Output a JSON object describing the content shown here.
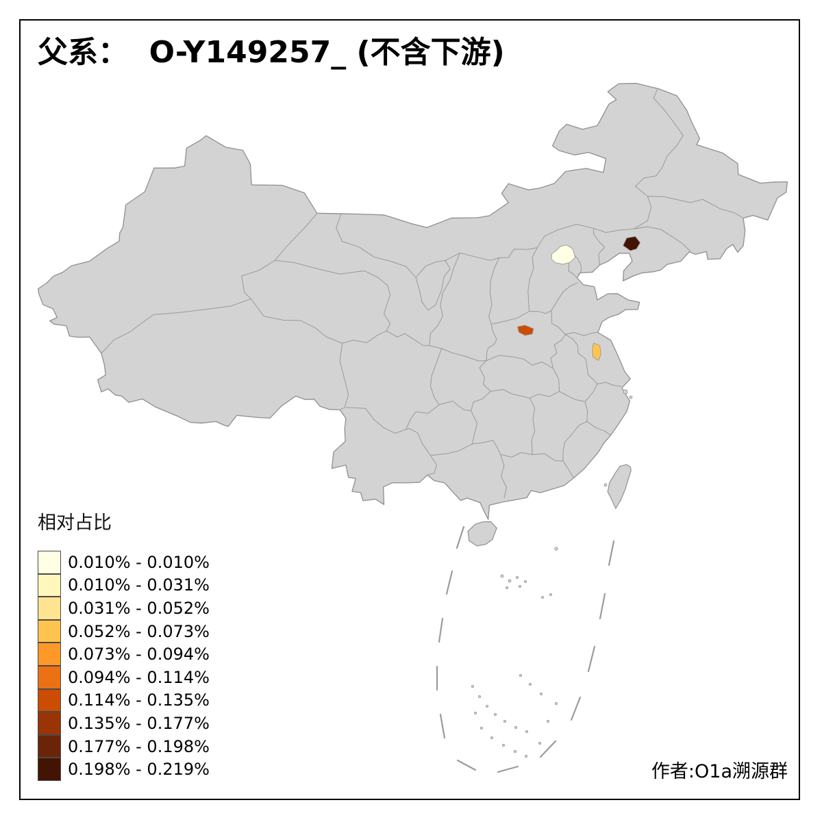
{
  "title": "父系：  O-Y149257_ (不含下游)",
  "attribution": "作者:O1a溯源群",
  "legend": {
    "title": "相对占比",
    "items": [
      {
        "label": "0.010% - 0.010%",
        "color": "#FFFFE5"
      },
      {
        "label": "0.010% - 0.031%",
        "color": "#FFF7BC"
      },
      {
        "label": "0.031% - 0.052%",
        "color": "#FEE391"
      },
      {
        "label": "0.052% - 0.073%",
        "color": "#FEC44F"
      },
      {
        "label": "0.073% - 0.094%",
        "color": "#FE9929"
      },
      {
        "label": "0.094% - 0.114%",
        "color": "#EC7014"
      },
      {
        "label": "0.114% - 0.135%",
        "color": "#CC4C02"
      },
      {
        "label": "0.135% - 0.177%",
        "color": "#993404"
      },
      {
        "label": "0.177% - 0.198%",
        "color": "#6B2407"
      },
      {
        "label": "0.198% - 0.219%",
        "color": "#431403"
      }
    ]
  },
  "map": {
    "land_fill": "#d3d3d3",
    "outer_stroke": "#8f8f8f",
    "border_stroke": "#999999",
    "sea_mark_stroke": "#9b9b9b",
    "frame_color": "#000000",
    "background": "#ffffff",
    "highlighted_regions": [
      {
        "name": "beijing-area",
        "range": "0.010% - 0.010%",
        "color": "#FFFFE5"
      },
      {
        "name": "west-liaoning-area",
        "range": "0.198% - 0.219%",
        "color": "#431403"
      },
      {
        "name": "central-henan-area",
        "range": "0.114% - 0.135%",
        "color": "#CC4C02"
      },
      {
        "name": "central-jiangsu-area",
        "range": "0.052% - 0.073%",
        "color": "#FEC44F"
      }
    ]
  },
  "chart_data": {
    "type": "heatmap",
    "subtype": "choropleth-map",
    "title": "父系：  O-Y149257_ (不含下游)",
    "legend_title": "相对占比",
    "bins": [
      "0.010% - 0.010%",
      "0.010% - 0.031%",
      "0.031% - 0.052%",
      "0.052% - 0.073%",
      "0.073% - 0.094%",
      "0.094% - 0.114%",
      "0.114% - 0.135%",
      "0.135% - 0.177%",
      "0.177% - 0.198%",
      "0.198% - 0.219%"
    ],
    "regions": [
      {
        "location": "beijing-area",
        "bin": "0.010% - 0.010%"
      },
      {
        "location": "west-liaoning-area",
        "bin": "0.198% - 0.219%"
      },
      {
        "location": "central-henan-area",
        "bin": "0.114% - 0.135%"
      },
      {
        "location": "central-jiangsu-area",
        "bin": "0.052% - 0.073%"
      }
    ],
    "legend_position": "bottom-left"
  }
}
